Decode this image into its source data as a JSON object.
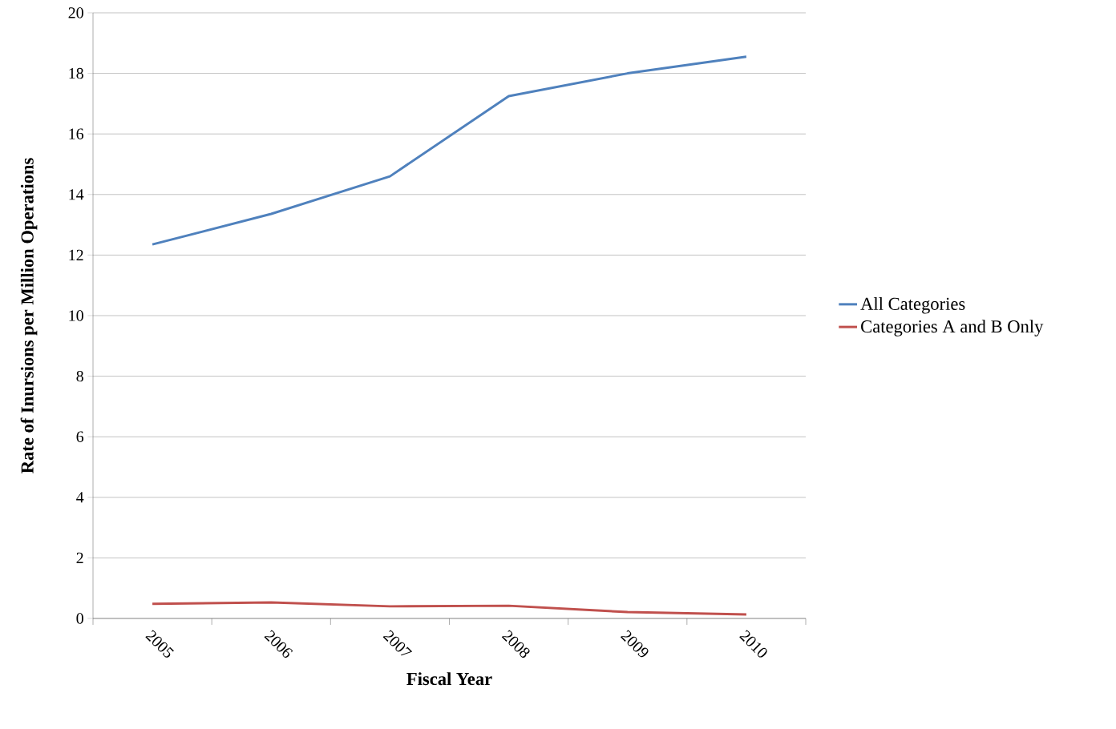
{
  "chart_data": {
    "type": "line",
    "xlabel": "Fiscal Year",
    "ylabel": "Rate of Inursions per Million Operations",
    "categories": [
      "2005",
      "2006",
      "2007",
      "2008",
      "2009",
      "2010"
    ],
    "series": [
      {
        "name": "All Categories",
        "color": "#4f81bd",
        "values": [
          12.35,
          13.36,
          14.6,
          17.25,
          18.0,
          18.55
        ]
      },
      {
        "name": "Categories A and B Only",
        "color": "#c0504d",
        "values": [
          0.48,
          0.53,
          0.4,
          0.42,
          0.21,
          0.13
        ]
      }
    ],
    "ylim": [
      0,
      20
    ],
    "yticks": [
      0,
      2,
      4,
      6,
      8,
      10,
      12,
      14,
      16,
      18,
      20
    ],
    "grid": "y",
    "legend": "right",
    "marker": "none",
    "line_style": "solid"
  }
}
